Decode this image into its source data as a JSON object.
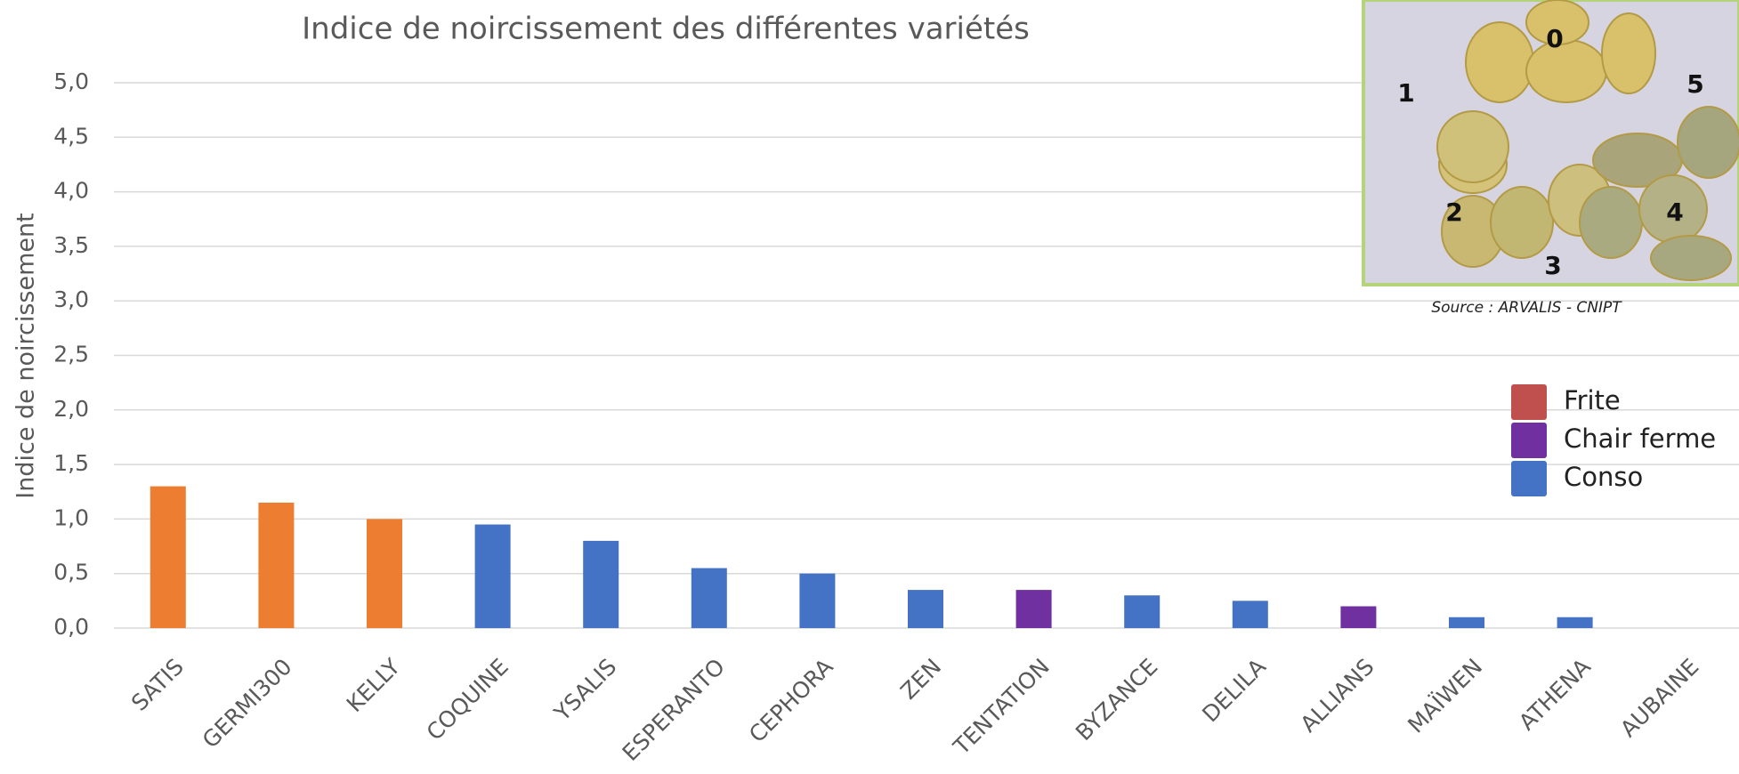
{
  "chart_data": {
    "type": "bar",
    "title": "Indice de noircissement des différentes variétés",
    "y_label": "Indice de noircissement",
    "categories": [
      "SATIS",
      "GERMI300",
      "KELLY",
      "COQUINE",
      "YSALIS",
      "ESPERANTO",
      "CEPHORA",
      "ZEN",
      "TENTATION",
      "BYZANCE",
      "DELILA",
      "ALLIANS",
      "MAÏWEN",
      "ATHENA",
      "AUBAINE"
    ],
    "values": [
      1.3,
      1.15,
      1.0,
      0.95,
      0.8,
      0.55,
      0.5,
      0.35,
      0.35,
      0.3,
      0.25,
      0.2,
      0.1,
      0.1,
      0
    ],
    "colors": [
      "#ed7d31",
      "#ed7d31",
      "#ed7d31",
      "#4472c4",
      "#4472c4",
      "#4472c4",
      "#4472c4",
      "#4472c4",
      "#7030a0",
      "#4472c4",
      "#4472c4",
      "#7030a0",
      "#4472c4",
      "#4472c4",
      "#4472c4"
    ],
    "ylim": [
      0,
      5
    ],
    "yticks": [
      {
        "value": 0,
        "label": "0,0"
      },
      {
        "value": 0.5,
        "label": "0,5"
      },
      {
        "value": 1,
        "label": "1,0"
      },
      {
        "value": 1.5,
        "label": "1,5"
      },
      {
        "value": 2,
        "label": "2,0"
      },
      {
        "value": 2.5,
        "label": "2,5"
      },
      {
        "value": 3,
        "label": "3,0"
      },
      {
        "value": 3.5,
        "label": "3,5"
      },
      {
        "value": 4,
        "label": "4,0"
      },
      {
        "value": 4.5,
        "label": "4,5"
      },
      {
        "value": 5,
        "label": "5,0"
      }
    ],
    "grid": true,
    "legend": [
      {
        "name": "Frite",
        "color": "#c0504d"
      },
      {
        "name": "Chair ferme",
        "color": "#7030a0"
      },
      {
        "name": "Conso",
        "color": "#4472c4"
      }
    ],
    "photo": {
      "labels": [
        "0",
        "1",
        "2",
        "3",
        "4",
        "5"
      ],
      "source": "Source : ARVALIS - CNIPT"
    }
  }
}
